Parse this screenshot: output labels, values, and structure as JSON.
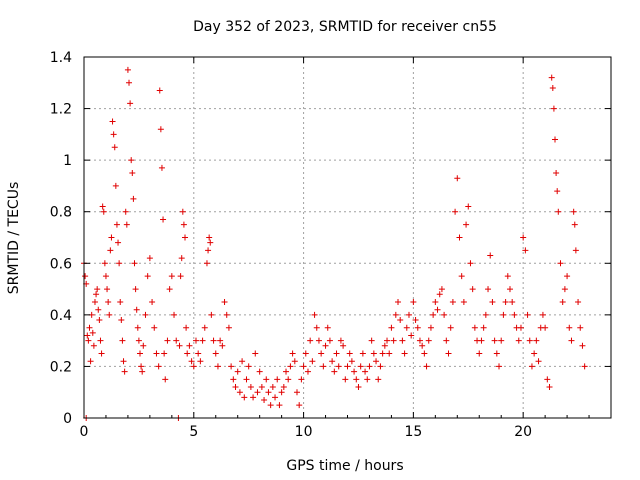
{
  "chart_data": {
    "type": "scatter",
    "title": "Day 352 of 2023, SRMTID for receiver cn55",
    "xlabel": "GPS time / hours",
    "ylabel": "SRMTID / TECUs",
    "xlim": [
      0,
      24
    ],
    "ylim": [
      0,
      1.4
    ],
    "x_ticks": [
      0,
      5,
      10,
      15,
      20
    ],
    "x_tick_labels": [
      "0",
      "5",
      "10",
      "15",
      "20"
    ],
    "y_ticks": [
      0,
      0.2,
      0.4,
      0.6,
      0.8,
      1.0,
      1.2,
      1.4
    ],
    "y_tick_labels": [
      "0",
      "0.2",
      "0.4",
      "0.6",
      "0.8",
      "1",
      "1.2",
      "1.4"
    ],
    "grid": true,
    "marker": "+",
    "marker_color": "#e00000",
    "series": [
      {
        "name": "cn55",
        "points": [
          [
            0.0,
            0.6
          ],
          [
            0.05,
            0.55
          ],
          [
            0.1,
            0.52
          ],
          [
            0.1,
            0.0
          ],
          [
            0.15,
            0.32
          ],
          [
            0.2,
            0.3
          ],
          [
            0.25,
            0.35
          ],
          [
            0.3,
            0.22
          ],
          [
            0.35,
            0.4
          ],
          [
            0.4,
            0.33
          ],
          [
            0.45,
            0.28
          ],
          [
            0.5,
            0.45
          ],
          [
            0.55,
            0.48
          ],
          [
            0.6,
            0.5
          ],
          [
            0.65,
            0.42
          ],
          [
            0.7,
            0.38
          ],
          [
            0.75,
            0.3
          ],
          [
            0.8,
            0.25
          ],
          [
            0.85,
            0.82
          ],
          [
            0.9,
            0.8
          ],
          [
            0.95,
            0.6
          ],
          [
            1.0,
            0.55
          ],
          [
            1.05,
            0.5
          ],
          [
            1.1,
            0.45
          ],
          [
            1.15,
            0.4
          ],
          [
            1.2,
            0.65
          ],
          [
            1.25,
            0.7
          ],
          [
            1.3,
            1.15
          ],
          [
            1.35,
            1.1
          ],
          [
            1.4,
            1.05
          ],
          [
            1.45,
            0.9
          ],
          [
            1.5,
            0.75
          ],
          [
            1.55,
            0.68
          ],
          [
            1.6,
            0.6
          ],
          [
            1.65,
            0.45
          ],
          [
            1.7,
            0.38
          ],
          [
            1.75,
            0.3
          ],
          [
            1.8,
            0.22
          ],
          [
            1.85,
            0.18
          ],
          [
            1.9,
            0.8
          ],
          [
            1.95,
            0.75
          ],
          [
            2.0,
            1.35
          ],
          [
            2.05,
            1.3
          ],
          [
            2.1,
            1.22
          ],
          [
            2.15,
            1.0
          ],
          [
            2.2,
            0.95
          ],
          [
            2.25,
            0.85
          ],
          [
            2.3,
            0.6
          ],
          [
            2.35,
            0.5
          ],
          [
            2.4,
            0.42
          ],
          [
            2.45,
            0.35
          ],
          [
            2.5,
            0.3
          ],
          [
            2.55,
            0.25
          ],
          [
            2.6,
            0.2
          ],
          [
            2.65,
            0.18
          ],
          [
            2.7,
            0.28
          ],
          [
            2.8,
            0.4
          ],
          [
            2.9,
            0.55
          ],
          [
            3.0,
            0.62
          ],
          [
            3.1,
            0.45
          ],
          [
            3.2,
            0.35
          ],
          [
            3.3,
            0.25
          ],
          [
            3.4,
            0.2
          ],
          [
            3.45,
            1.27
          ],
          [
            3.5,
            1.12
          ],
          [
            3.55,
            0.97
          ],
          [
            3.6,
            0.77
          ],
          [
            3.65,
            0.25
          ],
          [
            3.7,
            0.15
          ],
          [
            3.8,
            0.3
          ],
          [
            3.9,
            0.5
          ],
          [
            4.0,
            0.55
          ],
          [
            4.1,
            0.4
          ],
          [
            4.2,
            0.3
          ],
          [
            4.3,
            0.0
          ],
          [
            4.35,
            0.28
          ],
          [
            4.4,
            0.55
          ],
          [
            4.45,
            0.62
          ],
          [
            4.5,
            0.8
          ],
          [
            4.55,
            0.75
          ],
          [
            4.6,
            0.7
          ],
          [
            4.65,
            0.35
          ],
          [
            4.7,
            0.25
          ],
          [
            4.8,
            0.28
          ],
          [
            4.9,
            0.22
          ],
          [
            5.0,
            0.2
          ],
          [
            5.1,
            0.3
          ],
          [
            5.2,
            0.25
          ],
          [
            5.3,
            0.22
          ],
          [
            5.4,
            0.3
          ],
          [
            5.5,
            0.35
          ],
          [
            5.6,
            0.6
          ],
          [
            5.65,
            0.65
          ],
          [
            5.7,
            0.7
          ],
          [
            5.75,
            0.68
          ],
          [
            5.8,
            0.4
          ],
          [
            5.9,
            0.3
          ],
          [
            6.0,
            0.25
          ],
          [
            6.1,
            0.2
          ],
          [
            6.2,
            0.3
          ],
          [
            6.3,
            0.28
          ],
          [
            6.4,
            0.45
          ],
          [
            6.5,
            0.4
          ],
          [
            6.6,
            0.35
          ],
          [
            6.7,
            0.2
          ],
          [
            6.8,
            0.15
          ],
          [
            6.9,
            0.12
          ],
          [
            7.0,
            0.18
          ],
          [
            7.1,
            0.1
          ],
          [
            7.2,
            0.22
          ],
          [
            7.3,
            0.08
          ],
          [
            7.4,
            0.15
          ],
          [
            7.5,
            0.2
          ],
          [
            7.6,
            0.12
          ],
          [
            7.7,
            0.08
          ],
          [
            7.8,
            0.25
          ],
          [
            7.9,
            0.1
          ],
          [
            8.0,
            0.18
          ],
          [
            8.1,
            0.12
          ],
          [
            8.2,
            0.07
          ],
          [
            8.3,
            0.15
          ],
          [
            8.4,
            0.1
          ],
          [
            8.5,
            0.05
          ],
          [
            8.6,
            0.12
          ],
          [
            8.7,
            0.08
          ],
          [
            8.8,
            0.15
          ],
          [
            8.9,
            0.05
          ],
          [
            9.0,
            0.1
          ],
          [
            9.1,
            0.12
          ],
          [
            9.2,
            0.18
          ],
          [
            9.3,
            0.15
          ],
          [
            9.4,
            0.2
          ],
          [
            9.5,
            0.25
          ],
          [
            9.6,
            0.22
          ],
          [
            9.7,
            0.1
          ],
          [
            9.8,
            0.05
          ],
          [
            9.9,
            0.15
          ],
          [
            10.0,
            0.2
          ],
          [
            10.1,
            0.25
          ],
          [
            10.2,
            0.18
          ],
          [
            10.3,
            0.3
          ],
          [
            10.4,
            0.22
          ],
          [
            10.5,
            0.4
          ],
          [
            10.6,
            0.35
          ],
          [
            10.7,
            0.3
          ],
          [
            10.8,
            0.25
          ],
          [
            10.9,
            0.2
          ],
          [
            11.0,
            0.28
          ],
          [
            11.1,
            0.35
          ],
          [
            11.2,
            0.3
          ],
          [
            11.3,
            0.22
          ],
          [
            11.4,
            0.18
          ],
          [
            11.5,
            0.25
          ],
          [
            11.6,
            0.2
          ],
          [
            11.7,
            0.3
          ],
          [
            11.8,
            0.28
          ],
          [
            11.9,
            0.15
          ],
          [
            12.0,
            0.2
          ],
          [
            12.1,
            0.25
          ],
          [
            12.2,
            0.22
          ],
          [
            12.3,
            0.18
          ],
          [
            12.4,
            0.15
          ],
          [
            12.5,
            0.12
          ],
          [
            12.6,
            0.2
          ],
          [
            12.7,
            0.25
          ],
          [
            12.8,
            0.18
          ],
          [
            12.9,
            0.15
          ],
          [
            13.0,
            0.2
          ],
          [
            13.1,
            0.3
          ],
          [
            13.2,
            0.25
          ],
          [
            13.3,
            0.22
          ],
          [
            13.4,
            0.15
          ],
          [
            13.5,
            0.2
          ],
          [
            13.6,
            0.25
          ],
          [
            13.7,
            0.28
          ],
          [
            13.8,
            0.3
          ],
          [
            13.9,
            0.25
          ],
          [
            14.0,
            0.35
          ],
          [
            14.1,
            0.3
          ],
          [
            14.2,
            0.4
          ],
          [
            14.3,
            0.45
          ],
          [
            14.4,
            0.38
          ],
          [
            14.5,
            0.3
          ],
          [
            14.6,
            0.25
          ],
          [
            14.7,
            0.35
          ],
          [
            14.8,
            0.4
          ],
          [
            14.9,
            0.32
          ],
          [
            15.0,
            0.45
          ],
          [
            15.1,
            0.38
          ],
          [
            15.2,
            0.35
          ],
          [
            15.3,
            0.3
          ],
          [
            15.4,
            0.28
          ],
          [
            15.5,
            0.25
          ],
          [
            15.6,
            0.2
          ],
          [
            15.7,
            0.3
          ],
          [
            15.8,
            0.35
          ],
          [
            15.9,
            0.4
          ],
          [
            16.0,
            0.45
          ],
          [
            16.1,
            0.42
          ],
          [
            16.2,
            0.48
          ],
          [
            16.3,
            0.5
          ],
          [
            16.4,
            0.4
          ],
          [
            16.5,
            0.3
          ],
          [
            16.6,
            0.25
          ],
          [
            16.7,
            0.35
          ],
          [
            16.8,
            0.45
          ],
          [
            16.9,
            0.8
          ],
          [
            17.0,
            0.93
          ],
          [
            17.1,
            0.7
          ],
          [
            17.2,
            0.55
          ],
          [
            17.3,
            0.45
          ],
          [
            17.4,
            0.75
          ],
          [
            17.5,
            0.82
          ],
          [
            17.6,
            0.6
          ],
          [
            17.7,
            0.5
          ],
          [
            17.8,
            0.35
          ],
          [
            17.9,
            0.3
          ],
          [
            18.0,
            0.25
          ],
          [
            18.1,
            0.3
          ],
          [
            18.2,
            0.35
          ],
          [
            18.3,
            0.4
          ],
          [
            18.4,
            0.5
          ],
          [
            18.5,
            0.63
          ],
          [
            18.6,
            0.45
          ],
          [
            18.7,
            0.3
          ],
          [
            18.8,
            0.25
          ],
          [
            18.9,
            0.2
          ],
          [
            19.0,
            0.3
          ],
          [
            19.1,
            0.4
          ],
          [
            19.2,
            0.45
          ],
          [
            19.3,
            0.55
          ],
          [
            19.4,
            0.5
          ],
          [
            19.5,
            0.45
          ],
          [
            19.6,
            0.4
          ],
          [
            19.7,
            0.35
          ],
          [
            19.8,
            0.3
          ],
          [
            19.9,
            0.35
          ],
          [
            20.0,
            0.7
          ],
          [
            20.1,
            0.65
          ],
          [
            20.2,
            0.4
          ],
          [
            20.3,
            0.3
          ],
          [
            20.4,
            0.2
          ],
          [
            20.5,
            0.25
          ],
          [
            20.6,
            0.3
          ],
          [
            20.7,
            0.22
          ],
          [
            20.8,
            0.35
          ],
          [
            20.9,
            0.4
          ],
          [
            21.0,
            0.35
          ],
          [
            21.1,
            0.15
          ],
          [
            21.2,
            0.12
          ],
          [
            21.3,
            1.32
          ],
          [
            21.35,
            1.28
          ],
          [
            21.4,
            1.2
          ],
          [
            21.45,
            1.08
          ],
          [
            21.5,
            0.95
          ],
          [
            21.55,
            0.88
          ],
          [
            21.6,
            0.8
          ],
          [
            21.7,
            0.6
          ],
          [
            21.8,
            0.45
          ],
          [
            21.9,
            0.5
          ],
          [
            22.0,
            0.55
          ],
          [
            22.1,
            0.35
          ],
          [
            22.2,
            0.3
          ],
          [
            22.3,
            0.8
          ],
          [
            22.35,
            0.75
          ],
          [
            22.4,
            0.65
          ],
          [
            22.5,
            0.45
          ],
          [
            22.6,
            0.35
          ],
          [
            22.7,
            0.28
          ],
          [
            22.8,
            0.2
          ]
        ]
      }
    ]
  }
}
